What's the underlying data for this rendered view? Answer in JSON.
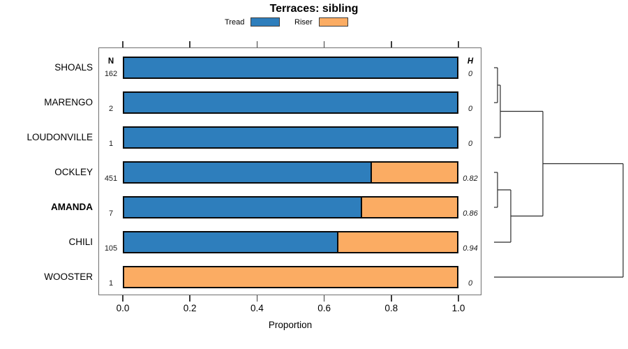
{
  "title": "Terraces: sibling",
  "legend": {
    "entries": [
      {
        "label": "Tread",
        "color": "#2E7EBC"
      },
      {
        "label": "Riser",
        "color": "#FBAC63"
      }
    ]
  },
  "columns": {
    "n_header": "N",
    "h_header": "H"
  },
  "axis": {
    "label": "Proportion",
    "tick_labels": [
      "0.0",
      "0.2",
      "0.4",
      "0.6",
      "0.8",
      "1.0"
    ]
  },
  "chart_data": {
    "type": "bar",
    "stacked": true,
    "orientation": "horizontal",
    "title": "Terraces: sibling",
    "xlabel": "Proportion",
    "xlim": [
      0,
      1
    ],
    "x_ticks": [
      0.0,
      0.2,
      0.4,
      0.6,
      0.8,
      1.0
    ],
    "categories": [
      "SHOALS",
      "MARENGO",
      "LOUDONVILLE",
      "OCKLEY",
      "AMANDA",
      "CHILI",
      "WOOSTER"
    ],
    "emphasized_category": "AMANDA",
    "series": [
      {
        "name": "Tread",
        "color": "#2E7EBC",
        "values": [
          1.0,
          1.0,
          1.0,
          0.74,
          0.71,
          0.64,
          0.0
        ]
      },
      {
        "name": "Riser",
        "color": "#FBAC63",
        "values": [
          0.0,
          0.0,
          0.0,
          0.26,
          0.29,
          0.36,
          1.0
        ]
      }
    ],
    "n_values": [
      "162",
      "2",
      "1",
      "451",
      "7",
      "105",
      "1"
    ],
    "h_values": [
      "0",
      "0",
      "0",
      "0.82",
      "0.86",
      "0.94",
      "0"
    ],
    "legend_position": "top",
    "grid": false
  },
  "dendrogram": {
    "line_color": "#2b2b2b",
    "tree": {
      "height": 185,
      "children": [
        {
          "height": 70,
          "children": [
            {
              "height": 9,
              "children": [
                {
                  "height": 5,
                  "children": [
                    {
                      "leaf": "SHOALS"
                    },
                    {
                      "leaf": "MARENGO"
                    }
                  ]
                },
                {
                  "leaf": "LOUDONVILLE"
                }
              ]
            },
            {
              "height": 24,
              "children": [
                {
                  "height": 5,
                  "children": [
                    {
                      "leaf": "OCKLEY"
                    },
                    {
                      "leaf": "AMANDA"
                    }
                  ]
                },
                {
                  "leaf": "CHILI"
                }
              ]
            }
          ]
        },
        {
          "leaf": "WOOSTER"
        }
      ]
    }
  }
}
